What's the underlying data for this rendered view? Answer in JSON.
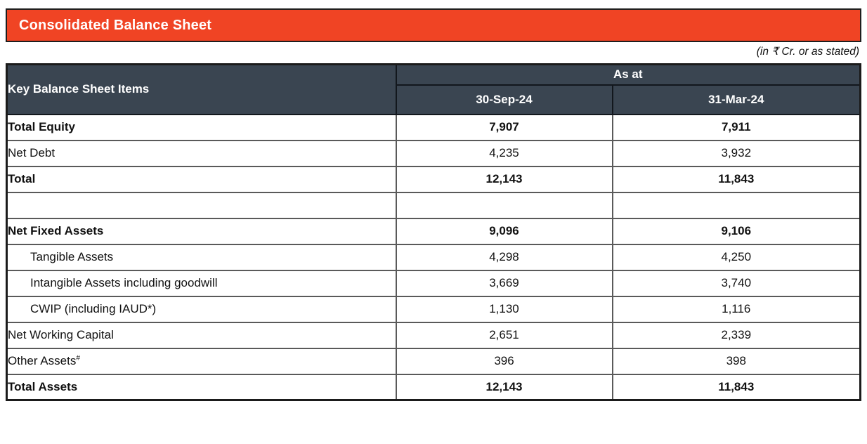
{
  "title": "Consolidated Balance Sheet",
  "units_note": "(in ₹ Cr. or as stated)",
  "colors": {
    "accent": "#F04424",
    "header_bg": "#3A4551",
    "header_text": "#FFFFFF",
    "grid_line": "#5A5A5A",
    "outer_border": "#1B1B1B"
  },
  "table": {
    "key_column_header": "Key Balance Sheet Items",
    "group_header": "As at",
    "date_columns": [
      "30-Sep-24",
      "31-Mar-24"
    ],
    "rows": [
      {
        "label": "Total Equity",
        "values": [
          "7,907",
          "7,911"
        ],
        "bold": true
      },
      {
        "label": "Net Debt",
        "values": [
          "4,235",
          "3,932"
        ]
      },
      {
        "label": "Total",
        "values": [
          "12,143",
          "11,843"
        ],
        "bold": true
      },
      {
        "label": "",
        "values": [
          "",
          ""
        ],
        "empty": true
      },
      {
        "label": "Net Fixed Assets",
        "values": [
          "9,096",
          "9,106"
        ],
        "bold": true
      },
      {
        "label": "Tangible Assets",
        "values": [
          "4,298",
          "4,250"
        ],
        "indent": true
      },
      {
        "label": "Intangible Assets including goodwill",
        "values": [
          "3,669",
          "3,740"
        ],
        "indent": true
      },
      {
        "label": "CWIP (including IAUD*)",
        "values": [
          "1,130",
          "1,116"
        ],
        "indent": true
      },
      {
        "label": "Net Working Capital",
        "values": [
          "2,651",
          "2,339"
        ]
      },
      {
        "label": "Other Assets",
        "superscript": "#",
        "values": [
          "396",
          "398"
        ]
      },
      {
        "label": "Total Assets",
        "values": [
          "12,143",
          "11,843"
        ],
        "bold": true
      }
    ]
  }
}
